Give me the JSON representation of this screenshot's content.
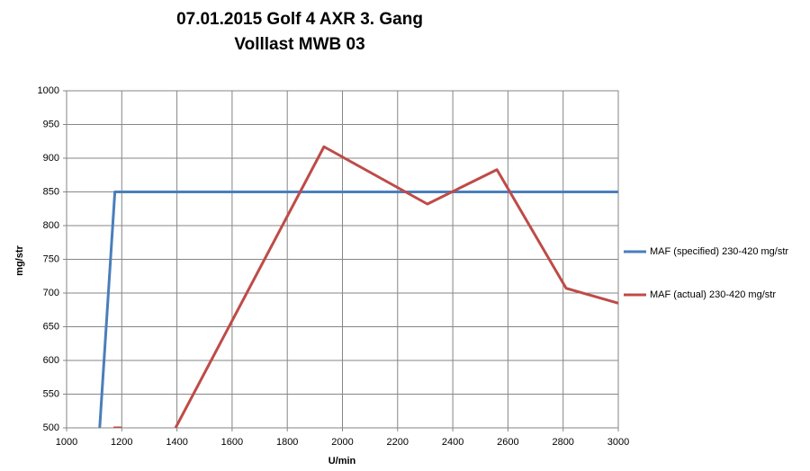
{
  "chart_data": {
    "type": "line",
    "title": [
      "07.01.2015  Golf 4 AXR 3. Gang",
      "Volllast MWB 03"
    ],
    "xlabel": "U/min",
    "ylabel": "mg/str",
    "xlim": [
      1000,
      3000
    ],
    "xticks": [
      1000,
      1200,
      1400,
      1600,
      1800,
      2000,
      2200,
      2400,
      2600,
      2800,
      3000
    ],
    "ylim": [
      500,
      1000
    ],
    "yticks": [
      500,
      550,
      600,
      650,
      700,
      750,
      800,
      850,
      900,
      950,
      1000
    ],
    "grid": true,
    "legend": "right",
    "series": [
      {
        "name": "MAF (specified) 230-420  mg/str",
        "color": "#4a7ebb",
        "x": [
          1120,
          1175,
          3000
        ],
        "values": [
          500,
          850,
          850
        ]
      },
      {
        "name": "MAF (actual) 230-420  mg/str",
        "color": "#be4b48",
        "x": [
          1170,
          1200,
          1300,
          1395,
          1933,
          2308,
          2560,
          2811,
          3000
        ],
        "values": [
          500,
          500,
          null,
          500,
          917,
          832,
          883,
          707,
          685
        ]
      }
    ]
  }
}
